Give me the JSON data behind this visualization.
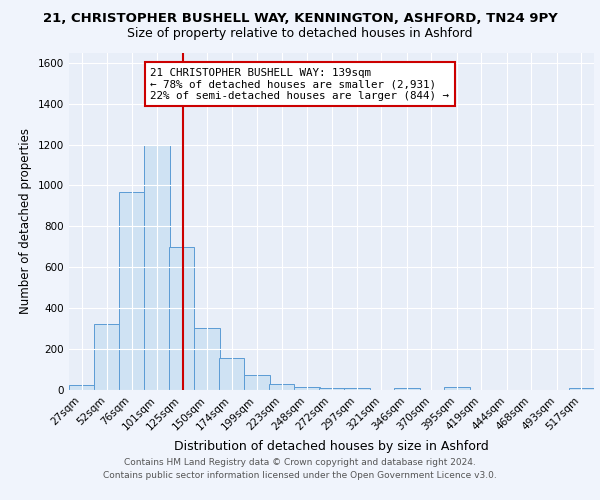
{
  "title1": "21, CHRISTOPHER BUSHELL WAY, KENNINGTON, ASHFORD, TN24 9PY",
  "title2": "Size of property relative to detached houses in Ashford",
  "xlabel": "Distribution of detached houses by size in Ashford",
  "ylabel": "Number of detached properties",
  "footer1": "Contains HM Land Registry data © Crown copyright and database right 2024.",
  "footer2": "Contains public sector information licensed under the Open Government Licence v3.0.",
  "bin_labels": [
    "27sqm",
    "52sqm",
    "76sqm",
    "101sqm",
    "125sqm",
    "150sqm",
    "174sqm",
    "199sqm",
    "223sqm",
    "248sqm",
    "272sqm",
    "297sqm",
    "321sqm",
    "346sqm",
    "370sqm",
    "395sqm",
    "419sqm",
    "444sqm",
    "468sqm",
    "493sqm",
    "517sqm"
  ],
  "bar_heights": [
    25,
    325,
    970,
    1200,
    700,
    305,
    155,
    75,
    30,
    15,
    10,
    10,
    0,
    10,
    0,
    15,
    0,
    0,
    0,
    0,
    10
  ],
  "bar_color": "#cfe2f3",
  "bar_edge_color": "#5b9bd5",
  "vline_x": 139,
  "vline_color": "#cc0000",
  "bin_edges_values": [
    27,
    52,
    76,
    101,
    125,
    150,
    174,
    199,
    223,
    248,
    272,
    297,
    321,
    346,
    370,
    395,
    419,
    444,
    468,
    493,
    517,
    542
  ],
  "annotation_line1": "21 CHRISTOPHER BUSHELL WAY: 139sqm",
  "annotation_line2": "← 78% of detached houses are smaller (2,931)",
  "annotation_line3": "22% of semi-detached houses are larger (844) →",
  "ylim": [
    0,
    1650
  ],
  "yticks": [
    0,
    200,
    400,
    600,
    800,
    1000,
    1200,
    1400,
    1600
  ],
  "background_color": "#f0f4fc",
  "plot_bg_color": "#e8eef8",
  "grid_color": "#ffffff",
  "title1_fontsize": 9.5,
  "title2_fontsize": 9,
  "xlabel_fontsize": 9,
  "ylabel_fontsize": 8.5,
  "tick_fontsize": 7.5,
  "annotation_fontsize": 7.8,
  "footer_fontsize": 6.5
}
